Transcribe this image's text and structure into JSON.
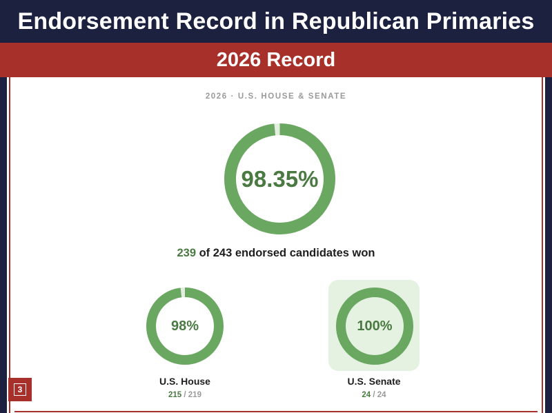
{
  "header": {
    "title": "Endorsement Record in Republican Primaries",
    "subtitle": "2026 Record"
  },
  "panel": {
    "eyebrow": "2026 · U.S. HOUSE & SENATE",
    "overall": {
      "percent_label": "98.35%",
      "fraction": 0.9835,
      "won": "239",
      "summary_rest": " of 243 endorsed candidates won"
    },
    "house": {
      "percent_label": "98%",
      "fraction": 0.98,
      "name": "U.S. House",
      "won": "215",
      "total": " / 219"
    },
    "senate": {
      "percent_label": "100%",
      "fraction": 1.0,
      "name": "U.S. Senate",
      "won": "24",
      "total": " / 24"
    }
  },
  "page_number": "3",
  "colors": {
    "navy": "#1c2140",
    "red": "#a8302a",
    "ring_green": "#6aa861",
    "text_green": "#4a7a42",
    "ring_track": "#e3eee0",
    "senate_card": "#e5f1e1"
  }
}
